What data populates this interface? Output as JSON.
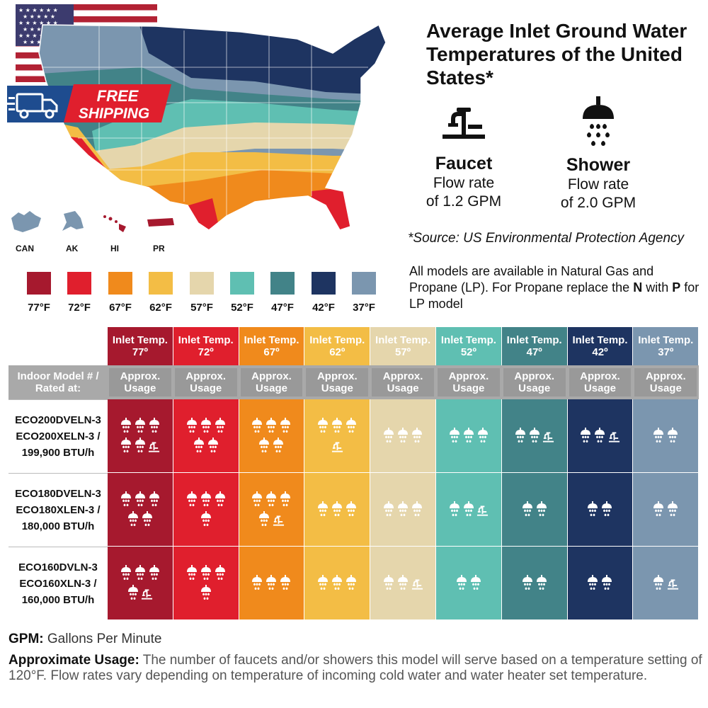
{
  "title": "Average Inlet Ground Water Temperatures of the United States*",
  "faucet": {
    "label": "Faucet",
    "rate_line1": "Flow rate",
    "rate_line2": "of 1.2 GPM"
  },
  "shower": {
    "label": "Shower",
    "rate_line1": "Flow rate",
    "rate_line2": "of 2.0 GPM"
  },
  "source": "*Source: US Environmental Protection Agency",
  "models_note": {
    "pre": "All models are available in Natural Gas and Propane (LP). For Propane replace the ",
    "n": "N",
    "mid": " with ",
    "p": "P",
    "post": " for LP model"
  },
  "badge": {
    "line1": "FREE",
    "line2": "SHIPPING"
  },
  "insets": [
    "CAN",
    "AK",
    "HI",
    "PR"
  ],
  "legend": [
    {
      "label": "77°F",
      "color": "#a6192e"
    },
    {
      "label": "72°F",
      "color": "#e01f2d"
    },
    {
      "label": "67°F",
      "color": "#f08a1c"
    },
    {
      "label": "62°F",
      "color": "#f3bd45"
    },
    {
      "label": "57°F",
      "color": "#e5d6ac"
    },
    {
      "label": "52°F",
      "color": "#5fbfb2"
    },
    {
      "label": "47°F",
      "color": "#428388"
    },
    {
      "label": "42°F",
      "color": "#1e3461"
    },
    {
      "label": "37°F",
      "color": "#7b96af"
    }
  ],
  "table": {
    "inlet_label": "Inlet Temp.",
    "temps": [
      "77º",
      "72º",
      "67º",
      "62º",
      "57º",
      "52º",
      "47º",
      "42º",
      "37º"
    ],
    "model_header": {
      "line1": "Indoor Model # /",
      "line2": "Rated at:"
    },
    "approx_label": {
      "line1": "Approx.",
      "line2": "Usage"
    },
    "rows": [
      {
        "line1": "ECO200DVELN-3",
        "line2": "ECO200XELN-3 /",
        "line3": "199,900 BTU/h",
        "usage": [
          {
            "s": 5,
            "f": 1
          },
          {
            "s": 5,
            "f": 0
          },
          {
            "s": 5,
            "f": 0
          },
          {
            "s": 3,
            "f": 1
          },
          {
            "s": 3,
            "f": 0
          },
          {
            "s": 3,
            "f": 0
          },
          {
            "s": 2,
            "f": 1
          },
          {
            "s": 2,
            "f": 1
          },
          {
            "s": 2,
            "f": 0
          }
        ]
      },
      {
        "line1": "ECO180DVELN-3",
        "line2": "ECO180XLEN-3 /",
        "line3": "180,000 BTU/h",
        "usage": [
          {
            "s": 5,
            "f": 0
          },
          {
            "s": 4,
            "f": 0
          },
          {
            "s": 4,
            "f": 1
          },
          {
            "s": 3,
            "f": 0
          },
          {
            "s": 3,
            "f": 0
          },
          {
            "s": 2,
            "f": 1
          },
          {
            "s": 2,
            "f": 0
          },
          {
            "s": 2,
            "f": 0
          },
          {
            "s": 2,
            "f": 0
          }
        ]
      },
      {
        "line1": "ECO160DVLN-3",
        "line2": "ECO160XLN-3 /",
        "line3": "160,000 BTU/h",
        "usage": [
          {
            "s": 4,
            "f": 1
          },
          {
            "s": 4,
            "f": 0
          },
          {
            "s": 3,
            "f": 0
          },
          {
            "s": 3,
            "f": 0
          },
          {
            "s": 2,
            "f": 1
          },
          {
            "s": 2,
            "f": 0
          },
          {
            "s": 2,
            "f": 0
          },
          {
            "s": 2,
            "f": 0
          },
          {
            "s": 1,
            "f": 1
          }
        ]
      }
    ]
  },
  "gpm": {
    "term": "GPM:",
    "text": " Gallons Per Minute"
  },
  "approx_usage": {
    "term": "Approximate Usage:",
    "text": " The number of faucets and/or showers this model will serve based on a temperature setting of 120°F. Flow rates vary depending on temperature of incoming cold water and water heater set temperature."
  }
}
